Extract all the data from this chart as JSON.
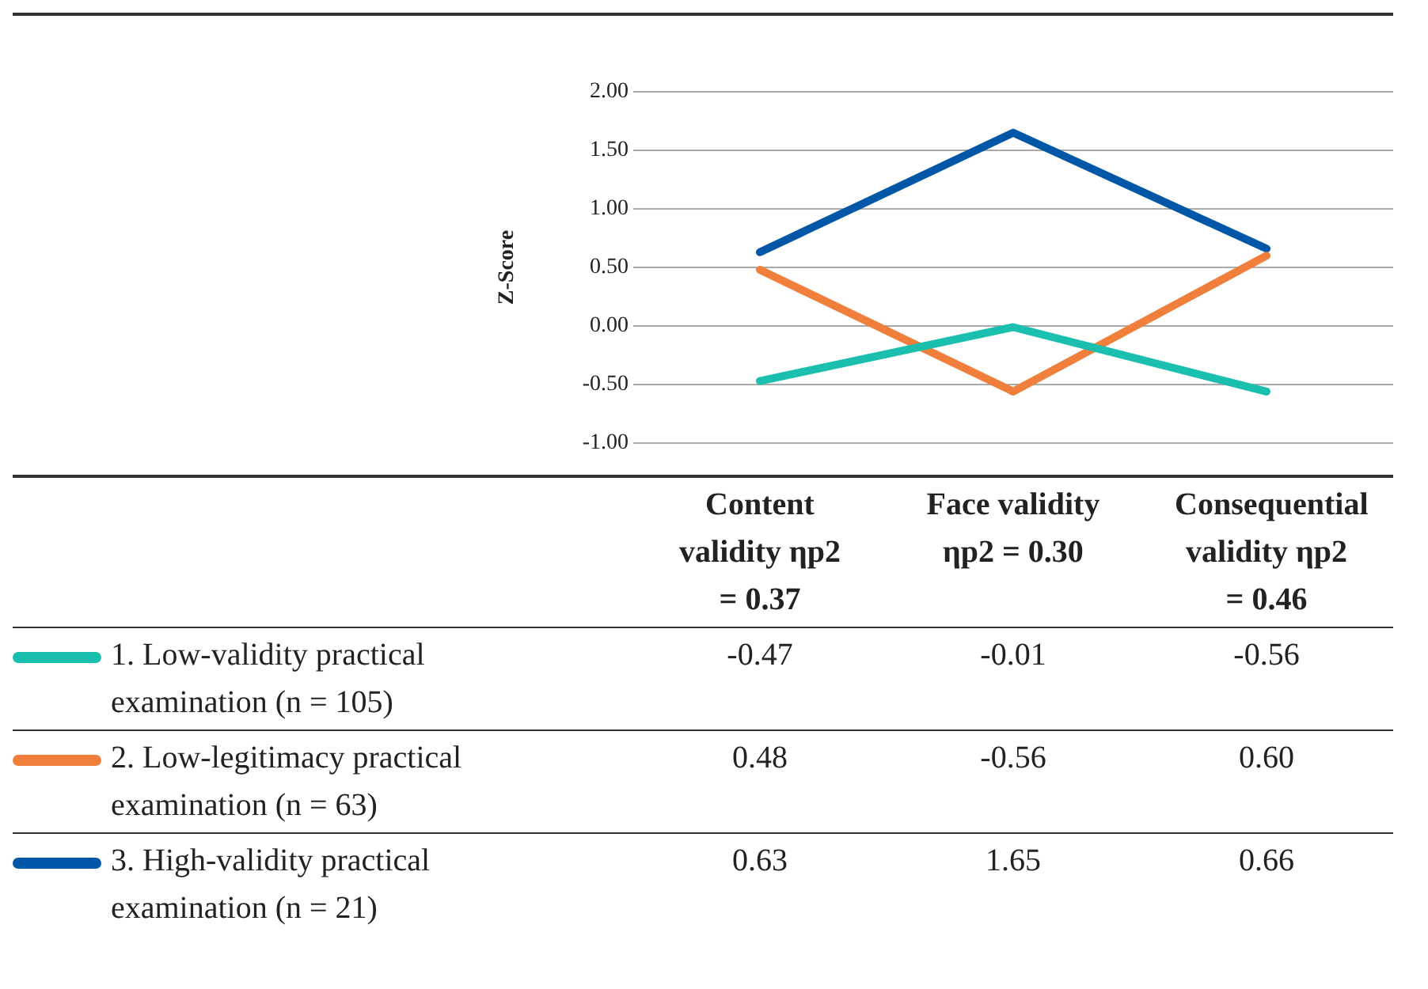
{
  "chart_data": {
    "type": "line",
    "ylabel": "Z-Score",
    "categories": [
      "Content validity ηp2 = 0.37",
      "Face validity ηp2 = 0.30",
      "Consequential validity ηp2 = 0.46"
    ],
    "series": [
      {
        "name": "1. Low-validity practical examination (n = 105)",
        "color": "#1bbfae",
        "values": [
          -0.47,
          -0.01,
          -0.56
        ],
        "value_labels": [
          "-0.47",
          "-0.01",
          "-0.56"
        ]
      },
      {
        "name": "2. Low-legitimacy practical examination (n = 63)",
        "color": "#f07f3c",
        "values": [
          0.48,
          -0.56,
          0.6
        ],
        "value_labels": [
          "0.48",
          "-0.56",
          "0.60"
        ]
      },
      {
        "name": "3. High-validity practical examination (n = 21)",
        "color": "#0057a8",
        "values": [
          0.63,
          1.65,
          0.66
        ],
        "value_labels": [
          "0.63",
          "1.65",
          "0.66"
        ]
      }
    ],
    "ylim": [
      -1,
      2
    ],
    "yticks": [
      {
        "value": -1,
        "label": "-1.00"
      },
      {
        "value": -0.5,
        "label": "-0.50"
      },
      {
        "value": 0,
        "label": "0.00"
      },
      {
        "value": 0.5,
        "label": "0.50"
      },
      {
        "value": 1,
        "label": "1.00"
      },
      {
        "value": 1.5,
        "label": "1.50"
      },
      {
        "value": 2,
        "label": "2.00"
      }
    ],
    "grid": "y",
    "legend": "bottom left",
    "marker": "none",
    "line_style": "solid"
  }
}
